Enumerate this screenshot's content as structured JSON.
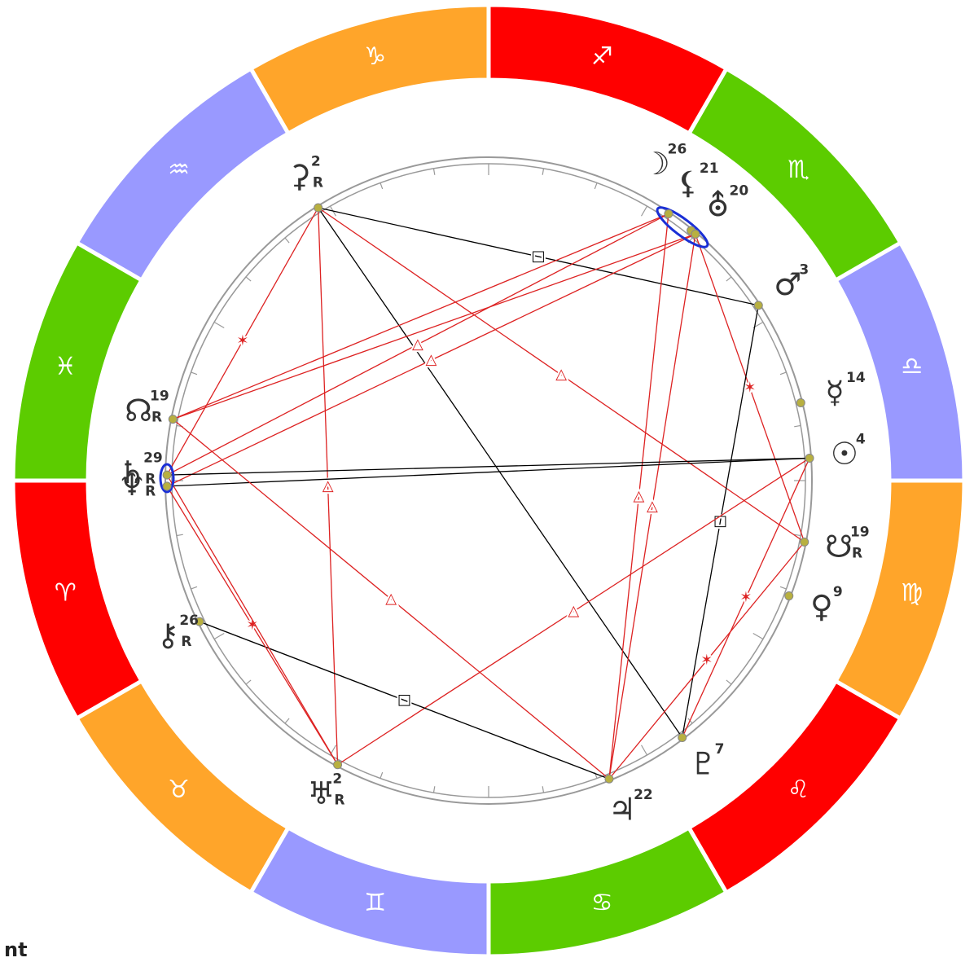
{
  "signs": [
    {
      "glyph": "♈︎",
      "color": "#ff0000"
    },
    {
      "glyph": "♉︎",
      "color": "#ffa52a"
    },
    {
      "glyph": "♊︎",
      "color": "#9999ff"
    },
    {
      "glyph": "♋︎",
      "color": "#5ccc00"
    },
    {
      "glyph": "♌︎",
      "color": "#ff0000"
    },
    {
      "glyph": "♍︎",
      "color": "#ffa52a"
    },
    {
      "glyph": "♎︎",
      "color": "#9999ff"
    },
    {
      "glyph": "♏︎",
      "color": "#5ccc00"
    },
    {
      "glyph": "♐︎",
      "color": "#ff0000"
    },
    {
      "glyph": "♑︎",
      "color": "#ffa52a"
    },
    {
      "glyph": "♒︎",
      "color": "#9999ff"
    },
    {
      "glyph": "♓︎",
      "color": "#5ccc00"
    }
  ],
  "planets": [
    {
      "glyph": "⚳",
      "degree": 2,
      "retro": "R",
      "longitude": 302
    },
    {
      "glyph": "☽",
      "degree": 26,
      "longitude": 236
    },
    {
      "glyph": "⚸",
      "degree": 21,
      "longitude": 231
    },
    {
      "glyph": "⛢",
      "degree": 20,
      "longitude": 230
    },
    {
      "glyph": "♂",
      "degree": 3,
      "longitude": 213
    },
    {
      "glyph": "☿",
      "degree": 14,
      "longitude": 194
    },
    {
      "glyph": "☉",
      "degree": 4,
      "longitude": 184
    },
    {
      "glyph": "☋",
      "degree": 19,
      "retro": "R",
      "longitude": 169
    },
    {
      "glyph": "♀",
      "degree": 9,
      "longitude": 159
    },
    {
      "glyph": "♇",
      "degree": 7,
      "longitude": 127
    },
    {
      "glyph": "♃",
      "degree": 22,
      "longitude": 112
    },
    {
      "glyph": "♅",
      "degree": 2,
      "retro": "R",
      "longitude": 62
    },
    {
      "glyph": "⚷",
      "degree": 26,
      "retro": "R",
      "longitude": 26
    },
    {
      "glyph": "♆",
      "retro": "R",
      "longitude": 1
    },
    {
      "glyph": "♄",
      "degree": 29,
      "retro": "R",
      "longitude": 359
    },
    {
      "glyph": "☊",
      "degree": 19,
      "retro": "R",
      "longitude": 349
    }
  ],
  "aspects": [
    {
      "from": 0,
      "to": 4,
      "symbol": "□",
      "color": "#000000"
    },
    {
      "from": 0,
      "to": 9,
      "color": "#000000"
    },
    {
      "from": 0,
      "to": 7,
      "symbol": "△",
      "color": "#dd2222"
    },
    {
      "from": 0,
      "to": 11,
      "symbol": "△",
      "color": "#dd2222"
    },
    {
      "from": 0,
      "to": 14,
      "symbol": "✶",
      "color": "#dd2222"
    },
    {
      "from": 1,
      "to": 14,
      "symbol": "△",
      "color": "#dd2222"
    },
    {
      "from": 3,
      "to": 13,
      "symbol": "△",
      "color": "#dd2222"
    },
    {
      "from": 1,
      "to": 10,
      "symbol": "△",
      "color": "#dd2222"
    },
    {
      "from": 3,
      "to": 10,
      "symbol": "△",
      "color": "#dd2222"
    },
    {
      "from": 3,
      "to": 7,
      "symbol": "✶",
      "color": "#dd2222"
    },
    {
      "from": 4,
      "to": 9,
      "symbol": "□",
      "color": "#000000"
    },
    {
      "from": 6,
      "to": 14,
      "color": "#000000"
    },
    {
      "from": 6,
      "to": 13,
      "color": "#000000"
    },
    {
      "from": 6,
      "to": 11,
      "symbol": "△",
      "color": "#dd2222"
    },
    {
      "from": 6,
      "to": 9,
      "symbol": "✶",
      "color": "#dd2222"
    },
    {
      "from": 15,
      "to": 10,
      "symbol": "△",
      "color": "#dd2222"
    },
    {
      "from": 12,
      "to": 10,
      "symbol": "□",
      "color": "#000000"
    },
    {
      "from": 13,
      "to": 11,
      "symbol": "✶",
      "color": "#dd2222"
    },
    {
      "from": 14,
      "to": 11,
      "color": "#dd2222"
    },
    {
      "from": 7,
      "to": 10,
      "symbol": "✶",
      "color": "#dd2222"
    },
    {
      "from": 15,
      "to": 1,
      "color": "#dd2222"
    },
    {
      "from": 15,
      "to": 3,
      "color": "#dd2222"
    }
  ],
  "footer": "nt"
}
